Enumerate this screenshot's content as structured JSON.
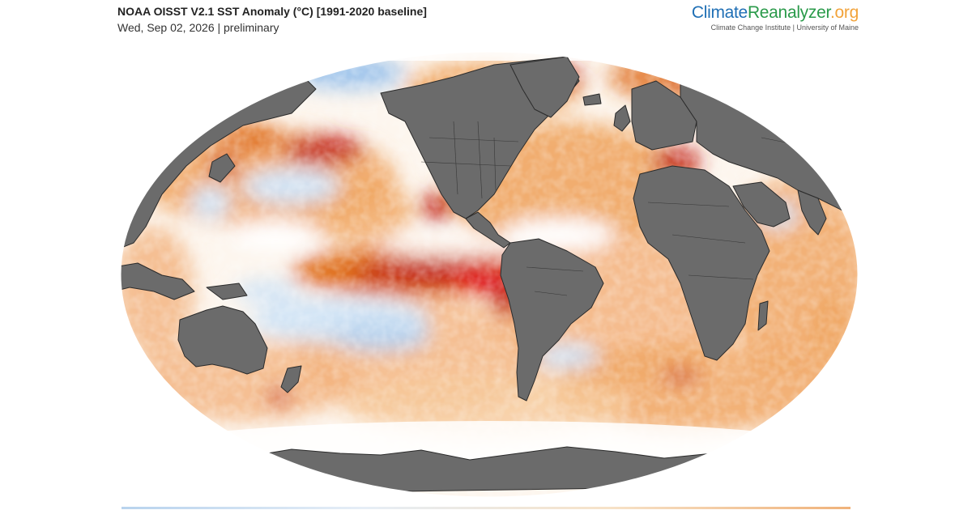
{
  "header": {
    "title": "NOAA OISST V2.1 SST Anomaly (°C) [1991-2020 baseline]",
    "subtitle": "Wed, Sep 02, 2026 | preliminary"
  },
  "brand": {
    "name_part1": "Climate",
    "name_part2": "Reanalyzer",
    "name_part3": ".org",
    "subtitle": "Climate Change Institute | University of Maine"
  },
  "map": {
    "projection": "robinson",
    "variable": "sea surface temperature anomaly",
    "colors": {
      "land": "#6b6b6b",
      "land_border": "#2b2b2b",
      "ocean_neutral": "#fdf6ee",
      "warm_light": "#f6c99a",
      "warm": "#f0a560",
      "warm_strong": "#e0701e",
      "hot": "#c5281c",
      "very_hot": "#e0151a",
      "cool_light": "#d2e4f5",
      "cool": "#9ec4ec",
      "cold": "#3b6fd0",
      "ice": "#ffffff"
    }
  }
}
